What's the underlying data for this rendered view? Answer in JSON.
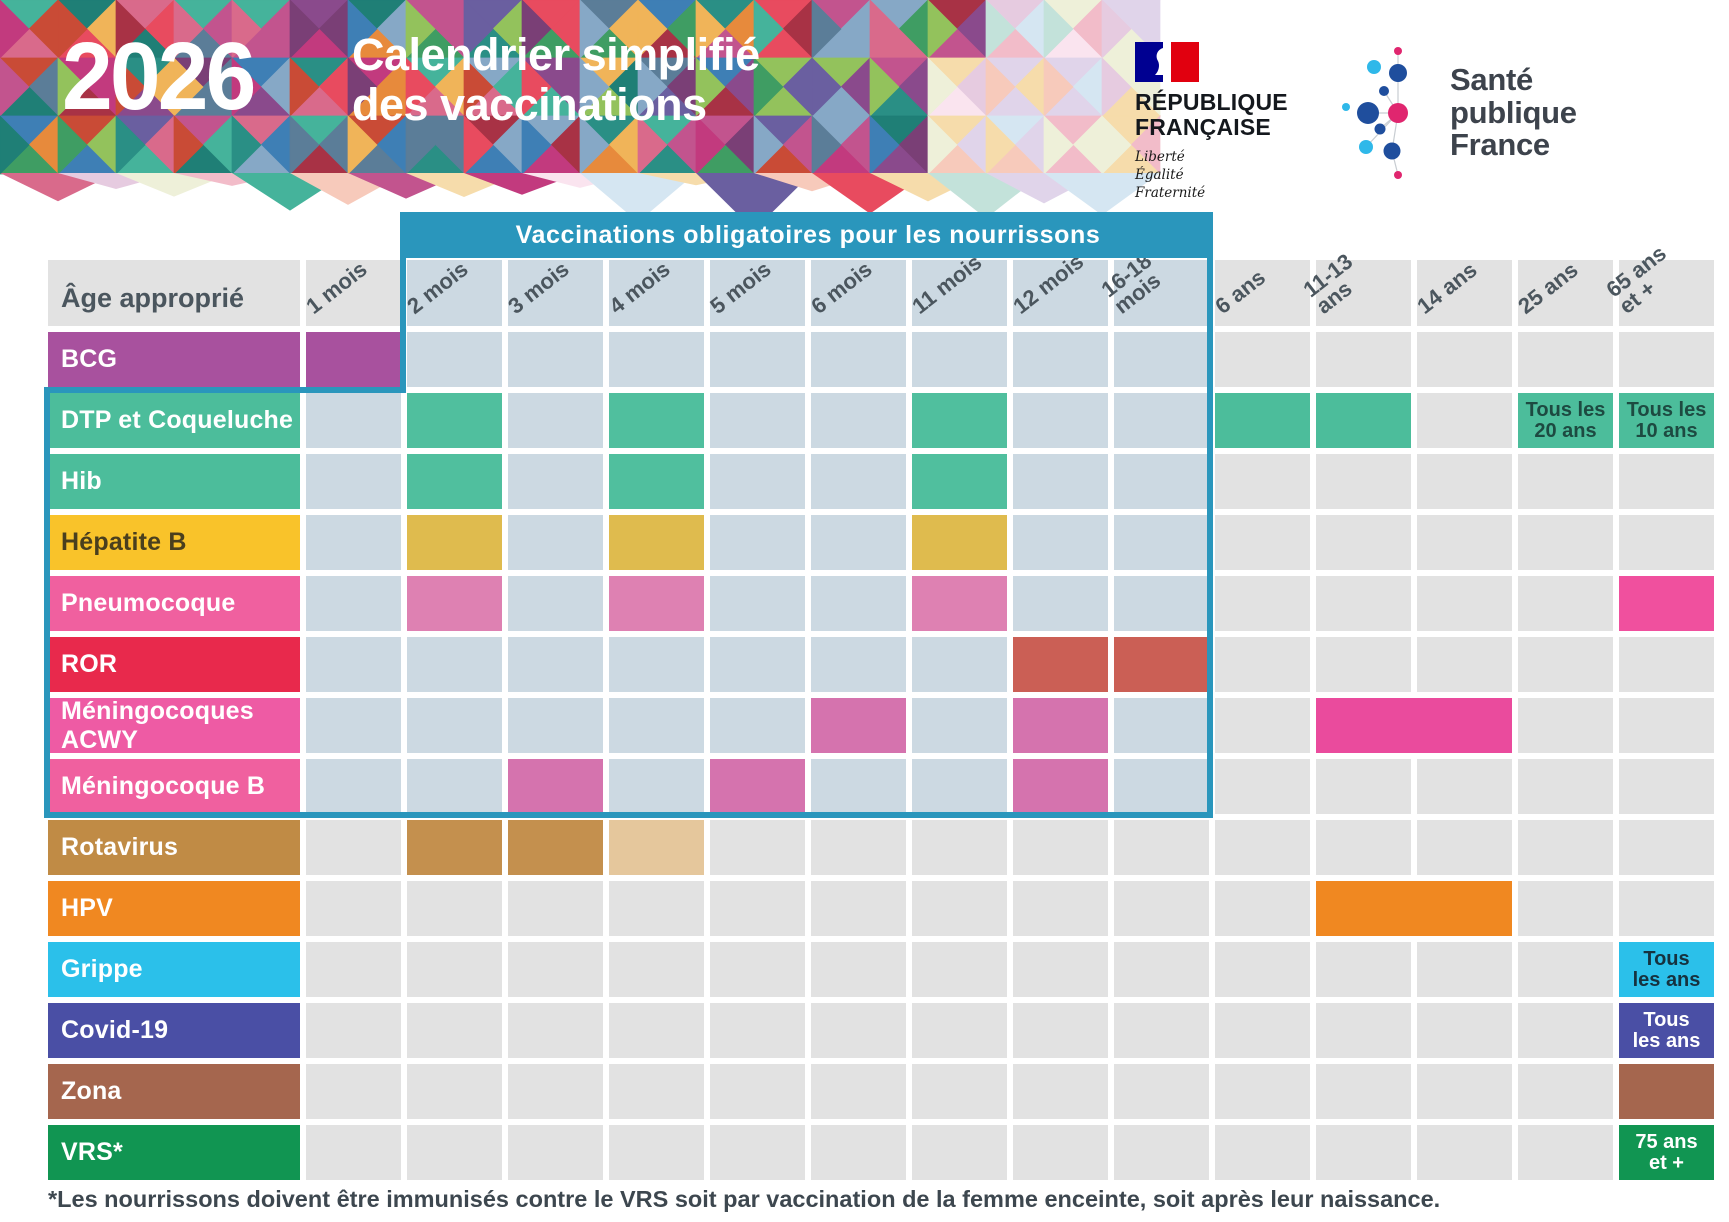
{
  "header": {
    "year": "2026",
    "title": "Calendrier simplifié\ndes vaccinations",
    "republique": {
      "name": "RÉPUBLIQUE\nFRANÇAISE",
      "motto": "Liberté\nÉgalité\nFraternité",
      "flag_blue": "#000091",
      "flag_red": "#e1000f"
    },
    "spf": {
      "name": "Santé\npublique\nFrance",
      "dot_pink": "#e0266f",
      "dot_blue": "#1f4e9d",
      "dot_cyan": "#2fb8e9"
    },
    "mosaic_palette": [
      "#e84b5f",
      "#c2548e",
      "#7a3f76",
      "#45b39b",
      "#1f7f76",
      "#3f9d63",
      "#93c25c",
      "#e78a3c",
      "#f0b459",
      "#3e7fb5",
      "#86a8c6",
      "#c23a7e",
      "#a83245",
      "#8a4a8c",
      "#2a8f85",
      "#d96a8b",
      "#5b7d98",
      "#c94b36",
      "#6a5fa0"
    ],
    "mosaic_palette_pale": [
      "#f2bcc9",
      "#e6cbe0",
      "#c3e2da",
      "#f6dcab",
      "#d5e6f2",
      "#f7cabb",
      "#e0d4ea",
      "#fae4ef",
      "#eef0d9"
    ]
  },
  "banner": {
    "label": "Vaccinations obligatoires pour les nourrissons"
  },
  "theme": {
    "outline": "#2a96bc",
    "cell_bg": "#e2e2e2",
    "cell_bg_zone": "#ccd9e2",
    "header_text": "#4b565e"
  },
  "chart_data": {
    "type": "table",
    "title": "Calendrier simplifié des vaccinations 2026",
    "corner_label": "Âge approprié",
    "columns": [
      "1 mois",
      "2 mois",
      "3 mois",
      "4 mois",
      "5 mois",
      "6 mois",
      "11 mois",
      "12 mois",
      "16-18\nmois",
      "6 ans",
      "11-13\nans",
      "14 ans",
      "25 ans",
      "65 ans\net +"
    ],
    "mandatory_zone": {
      "label": "Vaccinations obligatoires pour les nourrissons",
      "column_range": [
        1,
        8
      ],
      "row_range": [
        0,
        7
      ]
    },
    "rows": [
      {
        "label": "BCG",
        "color": "#a8519e",
        "zone": [
          1,
          8
        ],
        "fills": [
          {
            "col": 0,
            "color": "#a8519e"
          }
        ]
      },
      {
        "label": "DTP et Coqueluche",
        "color": "#4cbd9b",
        "zone": [
          0,
          8
        ],
        "fills": [
          {
            "col": 1,
            "color": "#50bf9e"
          },
          {
            "col": 3,
            "color": "#50bf9e"
          },
          {
            "col": 6,
            "color": "#50bf9e"
          },
          {
            "col": 9,
            "color": "#4cbd9b"
          },
          {
            "col": 10,
            "color": "#4cbd9b"
          },
          {
            "col": 12,
            "color": "#4cbd9b",
            "text": "Tous les\n20 ans",
            "text_color": "#1d4a41"
          },
          {
            "col": 13,
            "color": "#4cbd9b",
            "text": "Tous les\n10 ans",
            "text_color": "#1d4a41"
          }
        ]
      },
      {
        "label": "Hib",
        "color": "#4cbd9b",
        "zone": [
          0,
          8
        ],
        "fills": [
          {
            "col": 1,
            "color": "#50bf9e"
          },
          {
            "col": 3,
            "color": "#50bf9e"
          },
          {
            "col": 6,
            "color": "#50bf9e"
          }
        ]
      },
      {
        "label": "Hépatite B",
        "color": "#f9c32a",
        "label_text": "#4a3f1e",
        "zone": [
          0,
          8
        ],
        "fills": [
          {
            "col": 1,
            "color": "#dfbb4e"
          },
          {
            "col": 3,
            "color": "#dfbb4e"
          },
          {
            "col": 6,
            "color": "#dfbb4e"
          }
        ]
      },
      {
        "label": "Pneumocoque",
        "color": "#f0609f",
        "zone": [
          0,
          8
        ],
        "fills": [
          {
            "col": 1,
            "color": "#de81b2"
          },
          {
            "col": 3,
            "color": "#de81b2"
          },
          {
            "col": 6,
            "color": "#de81b2"
          },
          {
            "col": 13,
            "color": "#f0509e"
          }
        ]
      },
      {
        "label": "ROR",
        "color": "#e8294c",
        "zone": [
          0,
          8
        ],
        "fills": [
          {
            "col": 7,
            "color": "#cb5f55"
          },
          {
            "col": 8,
            "color": "#cb5f55"
          }
        ]
      },
      {
        "label": "Méningocoques ACWY",
        "color": "#ee5ba4",
        "zone": [
          0,
          8
        ],
        "fills": [
          {
            "col": 5,
            "color": "#d573ae"
          },
          {
            "col": 7,
            "color": "#d573ae"
          },
          {
            "col": 10,
            "span": 2,
            "color": "#ea4b9d"
          }
        ]
      },
      {
        "label": "Méningocoque B",
        "color": "#f0609f",
        "zone": [
          0,
          8
        ],
        "fills": [
          {
            "col": 2,
            "color": "#d573ae"
          },
          {
            "col": 4,
            "color": "#d573ae"
          },
          {
            "col": 7,
            "color": "#d573ae"
          }
        ]
      },
      {
        "label": "Rotavirus",
        "color": "#c08b45",
        "fills": [
          {
            "col": 1,
            "color": "#c4904e"
          },
          {
            "col": 2,
            "color": "#c4904e"
          },
          {
            "col": 3,
            "color": "#e5c79c"
          }
        ]
      },
      {
        "label": "HPV",
        "color": "#f08821",
        "fills": [
          {
            "col": 10,
            "span": 2,
            "color": "#f08821"
          }
        ]
      },
      {
        "label": "Grippe",
        "color": "#2bc0ea",
        "fills": [
          {
            "col": 13,
            "color": "#2bc0ea",
            "text": "Tous\nles ans",
            "text_color": "#16323f"
          }
        ]
      },
      {
        "label": "Covid-19",
        "color": "#4a4fa5",
        "fills": [
          {
            "col": 13,
            "color": "#4a4fa5",
            "text": "Tous\nles ans",
            "text_color": "#ffffff"
          }
        ]
      },
      {
        "label": "Zona",
        "color": "#a5664e",
        "fills": [
          {
            "col": 13,
            "color": "#a5664e"
          }
        ]
      },
      {
        "label": "VRS*",
        "color": "#119552",
        "fills": [
          {
            "col": 13,
            "color": "#119552",
            "text": "75 ans\net +",
            "text_color": "#ffffff"
          }
        ]
      }
    ]
  },
  "footnote": "*Les nourrissons doivent être immunisés contre le VRS soit par vaccination de la femme enceinte, soit après leur naissance."
}
